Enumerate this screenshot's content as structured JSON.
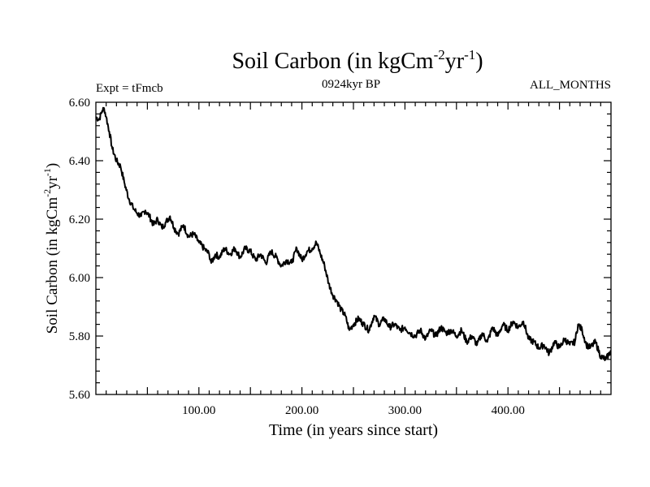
{
  "chart_data": {
    "type": "line",
    "title_main": "Soil Carbon (in kgCm",
    "title_sup1": "-2",
    "title_mid": "yr",
    "title_sup2": "-1",
    "title_end": ")",
    "subtitle_left": "Expt = tFmcb",
    "subtitle_center": "0924kyr BP",
    "subtitle_right": "ALL_MONTHS",
    "xlabel": "Time (in years since start)",
    "ylabel_main": "Soil Carbon (in kgCm",
    "ylabel_sup1": "-2",
    "ylabel_mid": "yr",
    "ylabel_sup2": "-1",
    "ylabel_end": ")",
    "xlim": [
      0,
      500
    ],
    "ylim": [
      5.6,
      6.6
    ],
    "x_ticks": [
      100,
      200,
      300,
      400
    ],
    "x_tick_labels": [
      "100.00",
      "200.00",
      "300.00",
      "400.00"
    ],
    "y_ticks": [
      5.6,
      5.8,
      6.0,
      6.2,
      6.4,
      6.6
    ],
    "y_tick_labels": [
      "5.60",
      "5.80",
      "6.00",
      "6.20",
      "6.40",
      "6.60"
    ],
    "series": [
      {
        "name": "Soil Carbon",
        "x": [
          0,
          3,
          6,
          8,
          10,
          13,
          16,
          20,
          24,
          28,
          32,
          36,
          40,
          44,
          48,
          52,
          56,
          60,
          64,
          68,
          72,
          76,
          80,
          85,
          90,
          95,
          100,
          105,
          110,
          112,
          116,
          120,
          125,
          130,
          135,
          140,
          145,
          150,
          155,
          160,
          165,
          170,
          175,
          180,
          185,
          190,
          195,
          200,
          205,
          210,
          214,
          218,
          222,
          226,
          230,
          234,
          238,
          242,
          246,
          250,
          255,
          260,
          265,
          270,
          275,
          280,
          285,
          290,
          295,
          300,
          305,
          310,
          315,
          320,
          325,
          330,
          335,
          340,
          345,
          350,
          355,
          360,
          365,
          370,
          375,
          380,
          385,
          390,
          395,
          400,
          405,
          410,
          415,
          420,
          425,
          430,
          435,
          440,
          445,
          450,
          455,
          460,
          465,
          468,
          472,
          476,
          480,
          485,
          490,
          495,
          500
        ],
        "y": [
          6.55,
          6.54,
          6.57,
          6.58,
          6.55,
          6.5,
          6.44,
          6.4,
          6.38,
          6.32,
          6.27,
          6.24,
          6.22,
          6.21,
          6.23,
          6.21,
          6.18,
          6.2,
          6.17,
          6.19,
          6.21,
          6.17,
          6.15,
          6.18,
          6.14,
          6.15,
          6.12,
          6.1,
          6.08,
          6.05,
          6.08,
          6.07,
          6.1,
          6.08,
          6.1,
          6.07,
          6.1,
          6.09,
          6.06,
          6.08,
          6.05,
          6.09,
          6.07,
          6.04,
          6.06,
          6.05,
          6.1,
          6.06,
          6.09,
          6.1,
          6.12,
          6.08,
          6.04,
          5.98,
          5.94,
          5.92,
          5.89,
          5.87,
          5.82,
          5.84,
          5.86,
          5.84,
          5.82,
          5.87,
          5.84,
          5.86,
          5.83,
          5.84,
          5.82,
          5.83,
          5.81,
          5.8,
          5.82,
          5.79,
          5.82,
          5.8,
          5.83,
          5.81,
          5.82,
          5.8,
          5.82,
          5.78,
          5.8,
          5.77,
          5.81,
          5.78,
          5.83,
          5.8,
          5.84,
          5.82,
          5.85,
          5.83,
          5.85,
          5.79,
          5.78,
          5.76,
          5.77,
          5.74,
          5.78,
          5.76,
          5.79,
          5.77,
          5.78,
          5.84,
          5.82,
          5.77,
          5.76,
          5.78,
          5.73,
          5.72,
          5.75
        ]
      }
    ]
  }
}
